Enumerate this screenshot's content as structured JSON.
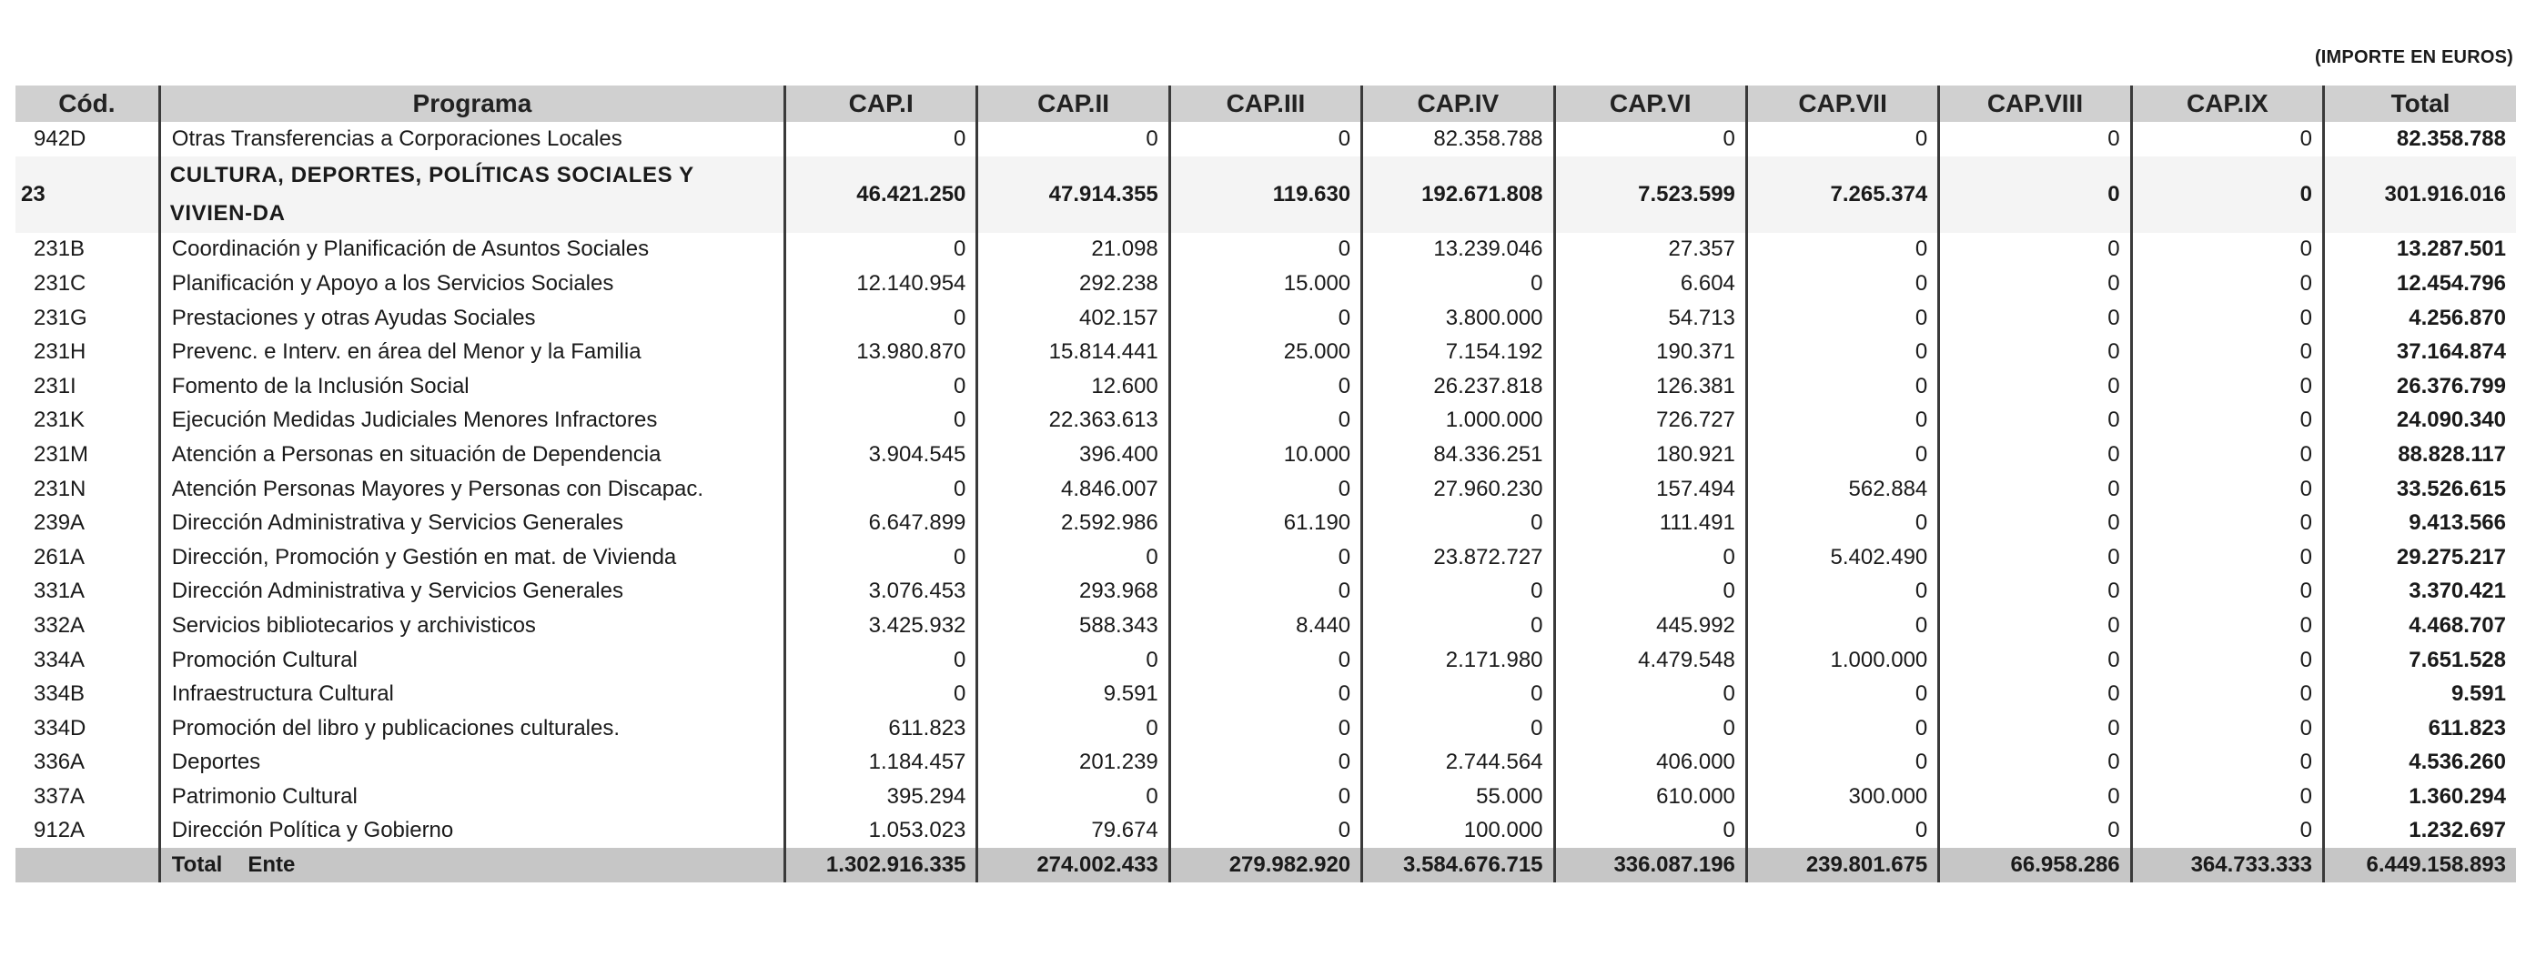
{
  "unit_note": "(IMPORTE EN EUROS)",
  "headers": [
    "Cód.",
    "Programa",
    "CAP.I",
    "CAP.II",
    "CAP.III",
    "CAP.IV",
    "CAP.VI",
    "CAP.VII",
    "CAP.VIII",
    "CAP.IX",
    "Total"
  ],
  "rows": [
    {
      "code": "942D",
      "programa": "Otras Transferencias a Corporaciones Locales",
      "values": [
        "0",
        "0",
        "0",
        "82.358.788",
        "0",
        "0",
        "0",
        "0",
        "82.358.788"
      ]
    },
    {
      "code": "23",
      "programa": "CULTURA, DEPORTES, POLÍTICAS SOCIALES Y VIVIEN-DA",
      "values": [
        "46.421.250",
        "47.914.355",
        "119.630",
        "192.671.808",
        "7.523.599",
        "7.265.374",
        "0",
        "0",
        "301.916.016"
      ]
    },
    {
      "code": "231B",
      "programa": "Coordinación y Planificación de Asuntos Sociales",
      "values": [
        "0",
        "21.098",
        "0",
        "13.239.046",
        "27.357",
        "0",
        "0",
        "0",
        "13.287.501"
      ]
    },
    {
      "code": "231C",
      "programa": "Planificación y Apoyo a los Servicios Sociales",
      "values": [
        "12.140.954",
        "292.238",
        "15.000",
        "0",
        "6.604",
        "0",
        "0",
        "0",
        "12.454.796"
      ]
    },
    {
      "code": "231G",
      "programa": "Prestaciones y otras Ayudas Sociales",
      "values": [
        "0",
        "402.157",
        "0",
        "3.800.000",
        "54.713",
        "0",
        "0",
        "0",
        "4.256.870"
      ]
    },
    {
      "code": "231H",
      "programa": "Prevenc. e Interv. en área del Menor y la Familia",
      "values": [
        "13.980.870",
        "15.814.441",
        "25.000",
        "7.154.192",
        "190.371",
        "0",
        "0",
        "0",
        "37.164.874"
      ]
    },
    {
      "code": "231I",
      "programa": "Fomento de la Inclusión Social",
      "values": [
        "0",
        "12.600",
        "0",
        "26.237.818",
        "126.381",
        "0",
        "0",
        "0",
        "26.376.799"
      ]
    },
    {
      "code": "231K",
      "programa": "Ejecución Medidas Judiciales Menores Infractores",
      "values": [
        "0",
        "22.363.613",
        "0",
        "1.000.000",
        "726.727",
        "0",
        "0",
        "0",
        "24.090.340"
      ]
    },
    {
      "code": "231M",
      "programa": "Atención a Personas en situación de Dependencia",
      "values": [
        "3.904.545",
        "396.400",
        "10.000",
        "84.336.251",
        "180.921",
        "0",
        "0",
        "0",
        "88.828.117"
      ]
    },
    {
      "code": "231N",
      "programa": "Atención Personas Mayores y Personas con Discapac.",
      "values": [
        "0",
        "4.846.007",
        "0",
        "27.960.230",
        "157.494",
        "562.884",
        "0",
        "0",
        "33.526.615"
      ]
    },
    {
      "code": "239A",
      "programa": "Dirección Administrativa y Servicios Generales",
      "values": [
        "6.647.899",
        "2.592.986",
        "61.190",
        "0",
        "111.491",
        "0",
        "0",
        "0",
        "9.413.566"
      ]
    },
    {
      "code": "261A",
      "programa": "Dirección, Promoción y Gestión en mat. de Vivienda",
      "values": [
        "0",
        "0",
        "0",
        "23.872.727",
        "0",
        "5.402.490",
        "0",
        "0",
        "29.275.217"
      ]
    },
    {
      "code": "331A",
      "programa": "Dirección Administrativa y Servicios Generales",
      "values": [
        "3.076.453",
        "293.968",
        "0",
        "0",
        "0",
        "0",
        "0",
        "0",
        "3.370.421"
      ]
    },
    {
      "code": "332A",
      "programa": "Servicios bibliotecarios y archivisticos",
      "values": [
        "3.425.932",
        "588.343",
        "8.440",
        "0",
        "445.992",
        "0",
        "0",
        "0",
        "4.468.707"
      ]
    },
    {
      "code": "334A",
      "programa": "Promoción Cultural",
      "values": [
        "0",
        "0",
        "0",
        "2.171.980",
        "4.479.548",
        "1.000.000",
        "0",
        "0",
        "7.651.528"
      ]
    },
    {
      "code": "334B",
      "programa": "Infraestructura Cultural",
      "values": [
        "0",
        "9.591",
        "0",
        "0",
        "0",
        "0",
        "0",
        "0",
        "9.591"
      ]
    },
    {
      "code": "334D",
      "programa": "Promoción del libro y publicaciones culturales.",
      "values": [
        "611.823",
        "0",
        "0",
        "0",
        "0",
        "0",
        "0",
        "0",
        "611.823"
      ]
    },
    {
      "code": "336A",
      "programa": "Deportes",
      "values": [
        "1.184.457",
        "201.239",
        "0",
        "2.744.564",
        "406.000",
        "0",
        "0",
        "0",
        "4.536.260"
      ]
    },
    {
      "code": "337A",
      "programa": "Patrimonio Cultural",
      "values": [
        "395.294",
        "0",
        "0",
        "55.000",
        "610.000",
        "300.000",
        "0",
        "0",
        "1.360.294"
      ]
    },
    {
      "code": "912A",
      "programa": "Dirección Política y Gobierno",
      "values": [
        "1.053.023",
        "79.674",
        "0",
        "100.000",
        "0",
        "0",
        "0",
        "0",
        "1.232.697"
      ]
    }
  ],
  "total_row": {
    "label_1": "Total",
    "label_2": "Ente",
    "values": [
      "1.302.916.335",
      "274.002.433",
      "279.982.920",
      "3.584.676.715",
      "336.087.196",
      "239.801.675",
      "66.958.286",
      "364.733.333",
      "6.449.158.893"
    ]
  }
}
